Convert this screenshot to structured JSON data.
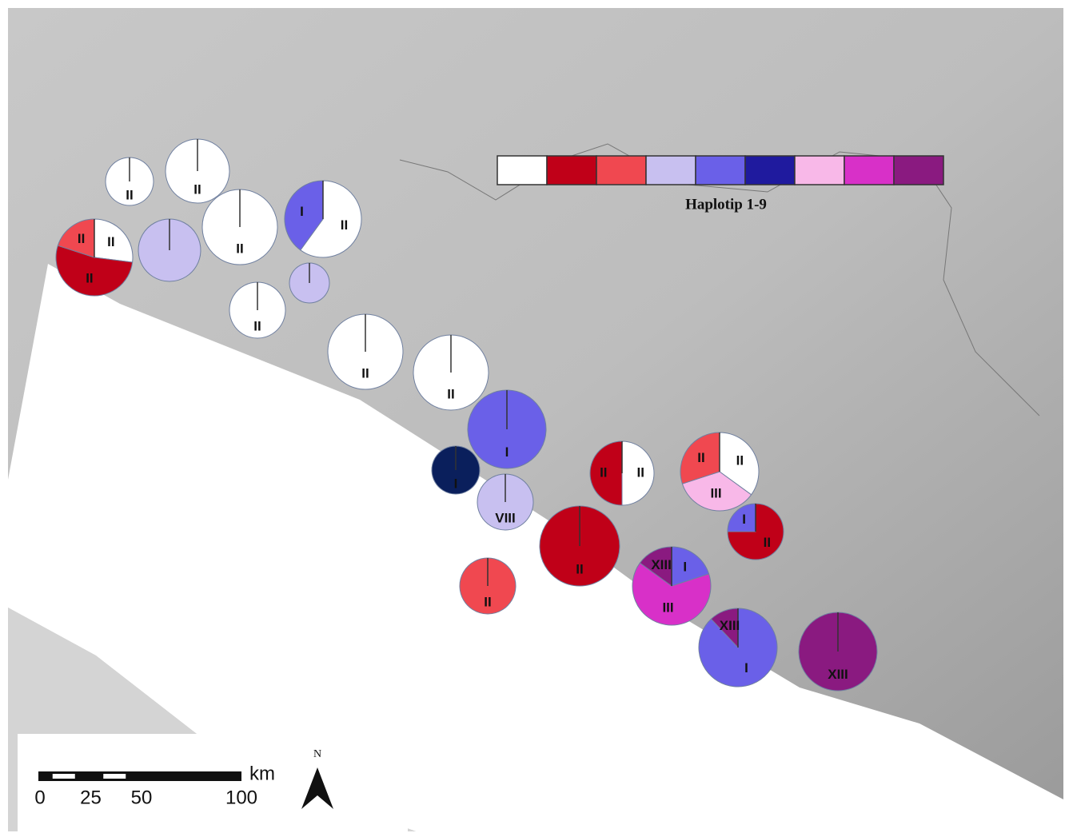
{
  "legend": {
    "title": "Haplotip 1-9",
    "colors": [
      "#ffffff",
      "#c00018",
      "#f04850",
      "#c8c0f0",
      "#6a60e8",
      "#1f1a9e",
      "#f8b8e8",
      "#d830c8",
      "#8a1a80"
    ]
  },
  "pies": [
    {
      "slices": [
        {
          "color": "#ffffff",
          "share": 100,
          "label": "II"
        }
      ]
    },
    {
      "slices": [
        {
          "color": "#ffffff",
          "share": 100,
          "label": "II"
        }
      ]
    },
    {
      "slices": [
        {
          "color": "#ffffff",
          "share": 100,
          "label": "II"
        }
      ]
    },
    {
      "slices": [
        {
          "color": "#ffffff",
          "share": 60,
          "label": "II"
        },
        {
          "color": "#6a60e8",
          "share": 40,
          "label": "I"
        }
      ]
    },
    {
      "slices": [
        {
          "color": "#ffffff",
          "share": 27,
          "label": "II"
        },
        {
          "color": "#c00018",
          "share": 53,
          "label": "II"
        },
        {
          "color": "#f04850",
          "share": 20,
          "label": "II"
        }
      ]
    },
    {
      "slices": [
        {
          "color": "#c8c0f0",
          "share": 100
        }
      ]
    },
    {
      "slices": [
        {
          "color": "#c8c0f0",
          "share": 100
        }
      ]
    },
    {
      "slices": [
        {
          "color": "#ffffff",
          "share": 100,
          "label": "II"
        }
      ]
    },
    {
      "slices": [
        {
          "color": "#ffffff",
          "share": 100,
          "label": "II"
        }
      ]
    },
    {
      "slices": [
        {
          "color": "#ffffff",
          "share": 100,
          "label": "II"
        }
      ]
    },
    {
      "slices": [
        {
          "color": "#6a60e8",
          "share": 100,
          "label": "I"
        }
      ]
    },
    {
      "slices": [
        {
          "color": "#0a1f5c",
          "share": 100,
          "label": "I"
        }
      ]
    },
    {
      "slices": [
        {
          "color": "#c8c0f0",
          "share": 100,
          "label": "VIII"
        }
      ]
    },
    {
      "slices": [
        {
          "color": "#ffffff",
          "share": 50,
          "label": "II"
        },
        {
          "color": "#c00018",
          "share": 50,
          "label": "II"
        }
      ]
    },
    {
      "slices": [
        {
          "color": "#ffffff",
          "share": 35,
          "label": "II"
        },
        {
          "color": "#f8b8e8",
          "share": 35,
          "label": "III"
        },
        {
          "color": "#f04850",
          "share": 30,
          "label": "II"
        }
      ]
    },
    {
      "slices": [
        {
          "color": "#c00018",
          "share": 100,
          "label": "II"
        }
      ]
    },
    {
      "slices": [
        {
          "color": "#c00018",
          "share": 75,
          "label": "II"
        },
        {
          "color": "#6a60e8",
          "share": 25,
          "label": "I"
        }
      ]
    },
    {
      "slices": [
        {
          "color": "#f04850",
          "share": 100,
          "label": "II"
        }
      ]
    },
    {
      "slices": [
        {
          "color": "#6a60e8",
          "share": 20,
          "label": "I"
        },
        {
          "color": "#d830c8",
          "share": 65,
          "label": "III"
        },
        {
          "color": "#8a1a80",
          "share": 15,
          "label": "XIII"
        }
      ]
    },
    {
      "slices": [
        {
          "color": "#6a60e8",
          "share": 88,
          "label": "I"
        },
        {
          "color": "#8a1a80",
          "share": 12,
          "label": "XIII"
        }
      ]
    },
    {
      "slices": [
        {
          "color": "#8a1a80",
          "share": 100,
          "label": "XIII"
        }
      ]
    }
  ],
  "scale_bar": {
    "ticks": [
      0,
      25,
      50,
      100
    ],
    "unit": "km"
  },
  "north": "N"
}
